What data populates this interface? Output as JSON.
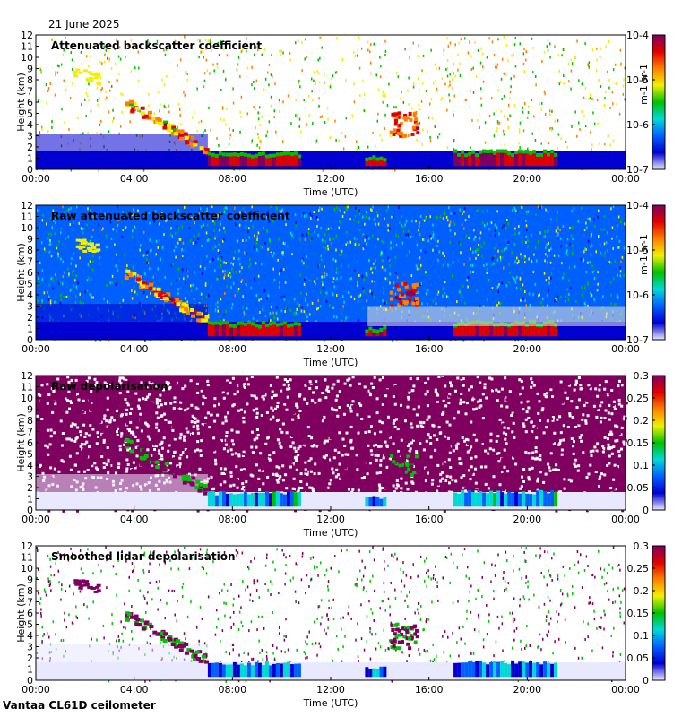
{
  "date": "21 June 2025",
  "footer": "Vantaa CL61D ceilometer",
  "chart_data": [
    {
      "type": "heatmap",
      "title": "Attenuated backscatter coefficient",
      "xlabel": "Time (UTC)",
      "ylabel": "Height (km)",
      "xticks": [
        "00:00",
        "04:00",
        "08:00",
        "12:00",
        "16:00",
        "20:00",
        "00:00"
      ],
      "xlim_hours": [
        0,
        24
      ],
      "ylim": [
        0,
        12
      ],
      "yticks": [
        0,
        1,
        2,
        3,
        4,
        5,
        6,
        7,
        8,
        9,
        10,
        11,
        12
      ],
      "colorbar": {
        "scale": "log",
        "unit": "m-1 sr-1",
        "ticks": [
          "10-7",
          "10-6",
          "10-5",
          "10-4"
        ]
      },
      "features": [
        {
          "name": "boundary layer aerosol",
          "t": [
            0,
            7
          ],
          "height_km": [
            0,
            3.5
          ]
        },
        {
          "name": "elevated aerosol layer",
          "t": [
            1.5,
            2.5
          ],
          "height_km": [
            8,
            9
          ]
        },
        {
          "name": "descending layer",
          "t": [
            3.5,
            6.8
          ],
          "height_km": [
            6,
            2
          ]
        },
        {
          "name": "low cloud",
          "t": [
            7,
            10.8
          ],
          "height_km": [
            0.6,
            2
          ]
        },
        {
          "name": "cloud",
          "t": [
            14.5,
            15.5
          ],
          "height_km": [
            3,
            5
          ]
        },
        {
          "name": "low cloud",
          "t": [
            17,
            21.3
          ],
          "height_km": [
            0.5,
            2
          ]
        }
      ]
    },
    {
      "type": "heatmap",
      "title": "Raw attenuated backscatter coefficient",
      "xlabel": "Time (UTC)",
      "ylabel": "Height (km)",
      "xticks": [
        "00:00",
        "04:00",
        "08:00",
        "12:00",
        "16:00",
        "20:00",
        "00:00"
      ],
      "xlim_hours": [
        0,
        24
      ],
      "ylim": [
        0,
        12
      ],
      "yticks": [
        0,
        1,
        2,
        3,
        4,
        5,
        6,
        7,
        8,
        9,
        10,
        11,
        12
      ],
      "colorbar": {
        "scale": "log",
        "unit": "m-1 sr-1",
        "ticks": [
          "10-7",
          "10-6",
          "10-5",
          "10-4"
        ]
      }
    },
    {
      "type": "heatmap",
      "title": "Raw depolarisation",
      "xlabel": "Time (UTC)",
      "ylabel": "Height (km)",
      "xticks": [
        "00:00",
        "04:00",
        "08:00",
        "12:00",
        "16:00",
        "20:00",
        "00:00"
      ],
      "xlim_hours": [
        0,
        24
      ],
      "ylim": [
        0,
        12
      ],
      "yticks": [
        0,
        1,
        2,
        3,
        4,
        5,
        6,
        7,
        8,
        9,
        10,
        11,
        12
      ],
      "colorbar": {
        "scale": "linear",
        "range": [
          0,
          0.3
        ],
        "ticks": [
          "0",
          "0.05",
          "0.1",
          "0.15",
          "0.2",
          "0.25",
          "0.3"
        ]
      }
    },
    {
      "type": "heatmap",
      "title": "Smoothed lidar depolarisation",
      "xlabel": "Time (UTC)",
      "ylabel": "Height (km)",
      "xticks": [
        "00:00",
        "04:00",
        "08:00",
        "12:00",
        "16:00",
        "20:00",
        "00:00"
      ],
      "xlim_hours": [
        0,
        24
      ],
      "ylim": [
        0,
        12
      ],
      "yticks": [
        0,
        1,
        2,
        3,
        4,
        5,
        6,
        7,
        8,
        9,
        10,
        11,
        12
      ],
      "colorbar": {
        "scale": "linear",
        "range": [
          0,
          0.3
        ],
        "ticks": [
          "0",
          "0.05",
          "0.1",
          "0.15",
          "0.2",
          "0.25",
          "0.3"
        ]
      }
    }
  ],
  "colors": {
    "scale": [
      "#e8e8ff",
      "#0000d0",
      "#0060ff",
      "#00d8d8",
      "#00c000",
      "#f0f000",
      "#ff8000",
      "#e00000",
      "#800060"
    ],
    "background": "#ffffff",
    "nodata": "#d8d8d8"
  }
}
